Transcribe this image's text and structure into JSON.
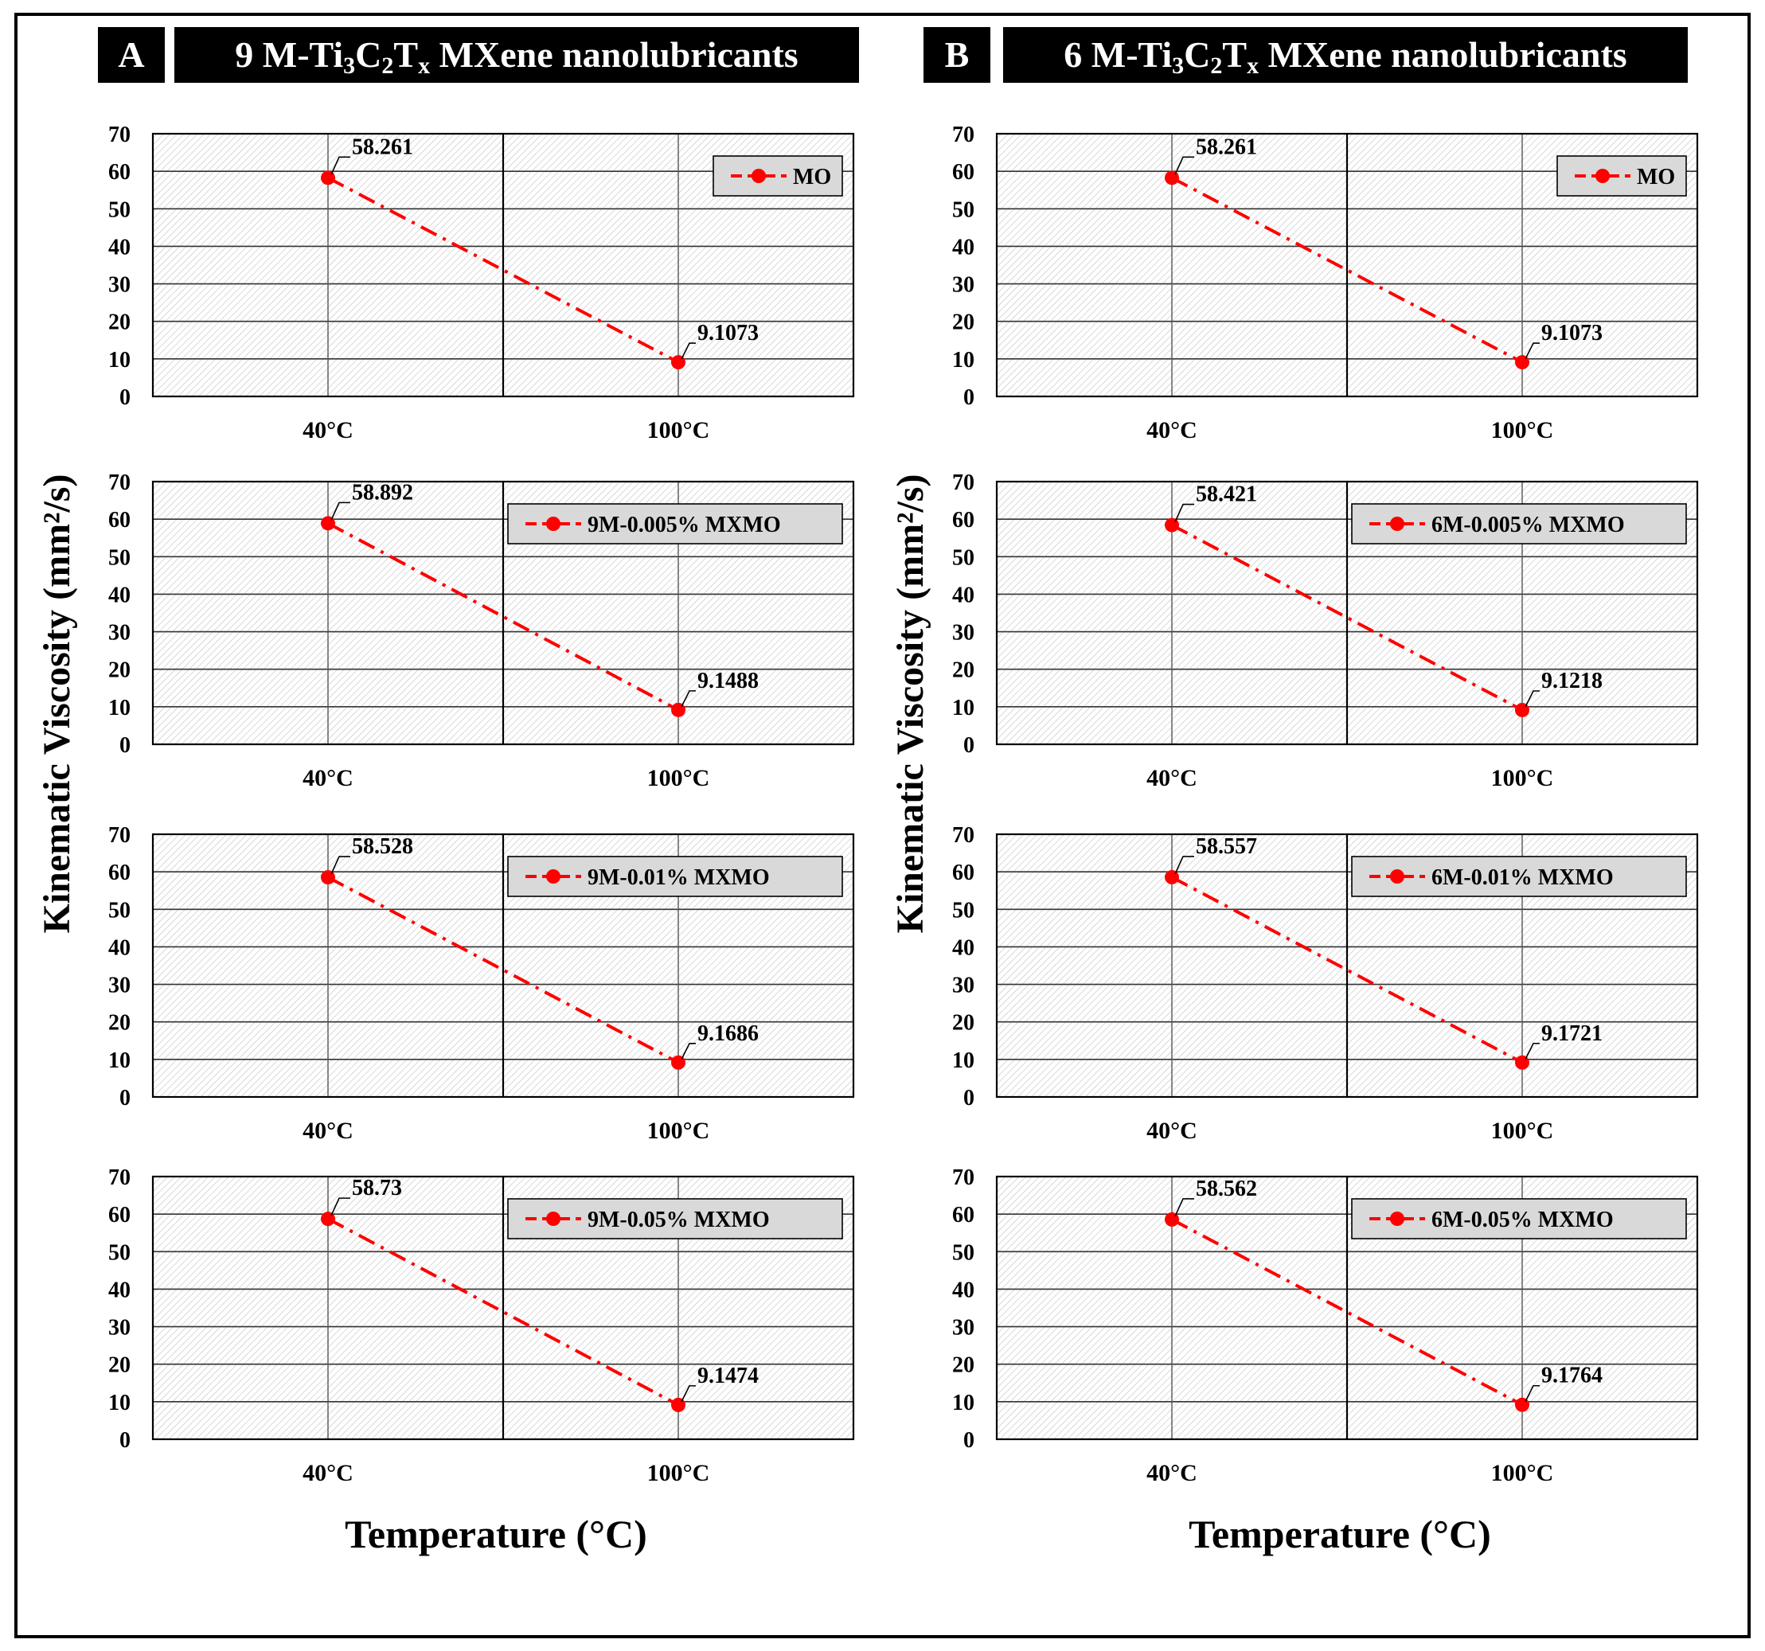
{
  "colors": {
    "series": "#ff0000",
    "grid": "#333333",
    "legend_bg": "#d9d9d9",
    "title_bg": "#000000",
    "title_fg": "#ffffff"
  },
  "panels": [
    {
      "letter": "A",
      "title_prefix": "9 M-Ti",
      "sub1": "3",
      "mid1": "C",
      "sub2": "2",
      "mid2": "T",
      "sub3": "x",
      "title_suffix": " MXene nanolubricants"
    },
    {
      "letter": "B",
      "title_prefix": "6 M-Ti",
      "sub1": "3",
      "mid1": "C",
      "sub2": "2",
      "mid2": "T",
      "sub3": "x",
      "title_suffix": " MXene nanolubricants"
    }
  ],
  "y_axis_label": "Kinematic Viscosity (mm²/s)",
  "x_axis_label": "Temperature (°C)",
  "chart_data": [
    {
      "type": "line",
      "panel": "A",
      "legend": "MO",
      "categories": [
        "40°C",
        "100°C"
      ],
      "values": [
        58.261,
        9.1073
      ],
      "labels": [
        "58.261",
        "9.1073"
      ],
      "ylim": [
        0,
        70
      ],
      "yticks": [
        0,
        10,
        20,
        30,
        40,
        50,
        60,
        70
      ]
    },
    {
      "type": "line",
      "panel": "A",
      "legend": "9M-0.005% MXMO",
      "categories": [
        "40°C",
        "100°C"
      ],
      "values": [
        58.892,
        9.1488
      ],
      "labels": [
        "58.892",
        "9.1488"
      ],
      "ylim": [
        0,
        70
      ],
      "yticks": [
        0,
        10,
        20,
        30,
        40,
        50,
        60,
        70
      ]
    },
    {
      "type": "line",
      "panel": "A",
      "legend": "9M-0.01% MXMO",
      "categories": [
        "40°C",
        "100°C"
      ],
      "values": [
        58.528,
        9.1686
      ],
      "labels": [
        "58.528",
        "9.1686"
      ],
      "ylim": [
        0,
        70
      ],
      "yticks": [
        0,
        10,
        20,
        30,
        40,
        50,
        60,
        70
      ]
    },
    {
      "type": "line",
      "panel": "A",
      "legend": "9M-0.05% MXMO",
      "categories": [
        "40°C",
        "100°C"
      ],
      "values": [
        58.73,
        9.1474
      ],
      "labels": [
        "58.73",
        "9.1474"
      ],
      "ylim": [
        0,
        70
      ],
      "yticks": [
        0,
        10,
        20,
        30,
        40,
        50,
        60,
        70
      ]
    },
    {
      "type": "line",
      "panel": "B",
      "legend": "MO",
      "categories": [
        "40°C",
        "100°C"
      ],
      "values": [
        58.261,
        9.1073
      ],
      "labels": [
        "58.261",
        "9.1073"
      ],
      "ylim": [
        0,
        70
      ],
      "yticks": [
        0,
        10,
        20,
        30,
        40,
        50,
        60,
        70
      ]
    },
    {
      "type": "line",
      "panel": "B",
      "legend": "6M-0.005% MXMO",
      "categories": [
        "40°C",
        "100°C"
      ],
      "values": [
        58.421,
        9.1218
      ],
      "labels": [
        "58.421",
        "9.1218"
      ],
      "ylim": [
        0,
        70
      ],
      "yticks": [
        0,
        10,
        20,
        30,
        40,
        50,
        60,
        70
      ]
    },
    {
      "type": "line",
      "panel": "B",
      "legend": "6M-0.01% MXMO",
      "categories": [
        "40°C",
        "100°C"
      ],
      "values": [
        58.557,
        9.1721
      ],
      "labels": [
        "58.557",
        "9.1721"
      ],
      "ylim": [
        0,
        70
      ],
      "yticks": [
        0,
        10,
        20,
        30,
        40,
        50,
        60,
        70
      ]
    },
    {
      "type": "line",
      "panel": "B",
      "legend": "6M-0.05% MXMO",
      "categories": [
        "40°C",
        "100°C"
      ],
      "values": [
        58.562,
        9.1764
      ],
      "labels": [
        "58.562",
        "9.1764"
      ],
      "ylim": [
        0,
        70
      ],
      "yticks": [
        0,
        10,
        20,
        30,
        40,
        50,
        60,
        70
      ]
    }
  ]
}
